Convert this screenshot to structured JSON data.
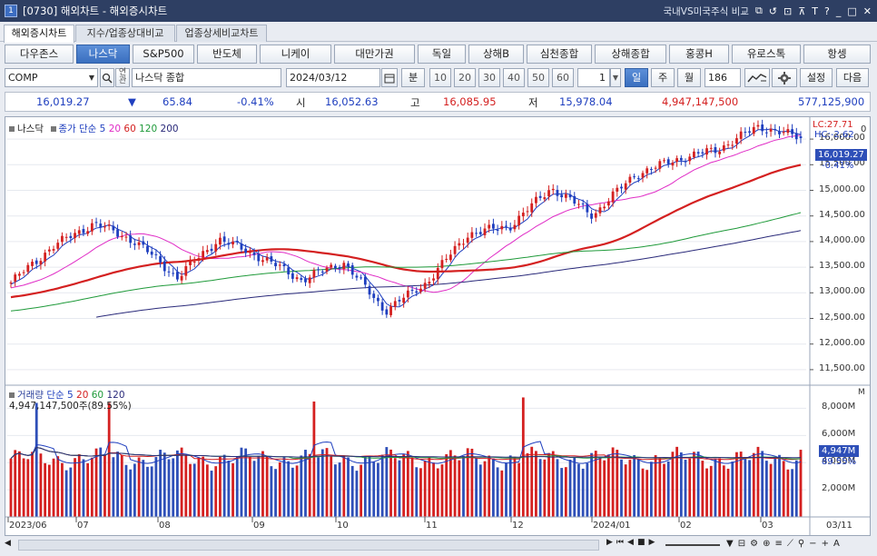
{
  "window": {
    "title": "[0730] 해외차트 - 해외증시차트",
    "app_number": "1",
    "right_label": "국내VS미국주식 비교",
    "icons": [
      "link-icon",
      "restore-icon",
      "copy-icon",
      "pin-icon",
      "text-icon",
      "help-icon",
      "minimize-icon",
      "maximize-icon",
      "close-icon"
    ]
  },
  "tabs": [
    "해외증시차트",
    "지수/업종상대비교",
    "업종상세비교차트"
  ],
  "markets": [
    "다우존스",
    "나스닥",
    "S&P500",
    "반도체",
    "니케이",
    "대만가권",
    "독일",
    "상해B",
    "심천종합",
    "상해종합",
    "홍콩H",
    "유로스톡",
    "항셍"
  ],
  "selected_market": "나스닥",
  "controls": {
    "code": "COMP",
    "name": "나스닥 종합",
    "date": "2024/03/12",
    "period_label": "분",
    "minute_intervals": [
      "10",
      "20",
      "30",
      "40",
      "50",
      "60"
    ],
    "period_value": "1",
    "day": "일",
    "week": "주",
    "month": "월",
    "count": "186",
    "settings": "설정",
    "next": "다음"
  },
  "quote": {
    "price": "16,019.27",
    "arrow": "▼",
    "change": "65.84",
    "change_pct": "-0.41%",
    "open_label": "시",
    "open": "16,052.63",
    "high_label": "고",
    "high": "16,085.95",
    "low_label": "저",
    "low": "15,978.04",
    "volume": "4,947,147,500",
    "amount": "577,125,900"
  },
  "price_legend": {
    "name": "나스닥",
    "ma_label": "종가 단순",
    "ma_periods": [
      "5",
      "20",
      "60",
      "120",
      "200"
    ],
    "ma_colors": [
      "#1f3fbf",
      "#e02cc6",
      "#d42020",
      "#1f9a3a",
      "#2a2a7a"
    ]
  },
  "price_axis": {
    "ticks": [
      "16,000.00",
      "15,500.00",
      "15,000.00",
      "14,500.00",
      "14,000.00",
      "13,500.00",
      "13,000.00",
      "12,500.00",
      "12,000.00",
      "11,500.00"
    ],
    "lc": "LC:27.71",
    "hc": "HC:-2.62",
    "last_price": "16,019.27",
    "last_change": "-0.41%",
    "top_tick_fragment": "0"
  },
  "volume_legend": {
    "name": "거래량",
    "ma_label": "단순",
    "ma_periods": [
      "5",
      "20",
      "60",
      "120"
    ],
    "ma_colors": [
      "#1f3fbf",
      "#d42020",
      "#1f9a3a",
      "#2a2a7a"
    ],
    "info": "4,947,147,500주(89.55%)"
  },
  "volume_axis": {
    "unit": "M",
    "ticks": [
      "8,000M",
      "6,000M",
      "4,000M",
      "2,000M"
    ],
    "last_volume": "4,947M",
    "last_pct": "89.55%"
  },
  "x_axis": {
    "labels": [
      "2023/06",
      "07",
      "08",
      "09",
      "10",
      "11",
      "12",
      "2024/01",
      "02",
      "03"
    ],
    "right_label": "03/11"
  },
  "chart_data": {
    "type": "candlestick",
    "series_name": "나스닥 종합",
    "x_range": [
      "2023/06",
      "2024/03/12"
    ],
    "ylim": [
      11250,
      16250
    ],
    "y_ticks": [
      16000,
      15500,
      15000,
      14500,
      14000,
      13500,
      13000,
      12500,
      12000,
      11500
    ],
    "close_path": [
      {
        "date": "2023/06",
        "close": 13200
      },
      {
        "date": "2023/07",
        "close": 13900
      },
      {
        "date": "2023/07/19",
        "close": 14360
      },
      {
        "date": "2023/08",
        "close": 14000
      },
      {
        "date": "2023/08/18",
        "close": 13300
      },
      {
        "date": "2023/09",
        "close": 14050
      },
      {
        "date": "2023/09/15",
        "close": 13700
      },
      {
        "date": "2023/10",
        "close": 13250
      },
      {
        "date": "2023/10/10",
        "close": 13600
      },
      {
        "date": "2023/10/26",
        "close": 12650
      },
      {
        "date": "2023/11",
        "close": 13200
      },
      {
        "date": "2023/11/15",
        "close": 14150
      },
      {
        "date": "2023/12",
        "close": 14300
      },
      {
        "date": "2023/12/20",
        "close": 15050
      },
      {
        "date": "2024/01/05",
        "close": 14520
      },
      {
        "date": "2024/01/20",
        "close": 15300
      },
      {
        "date": "2024/02",
        "close": 15600
      },
      {
        "date": "2024/02/20",
        "close": 15800
      },
      {
        "date": "2024/03",
        "close": 16250
      },
      {
        "date": "2024/03/12",
        "close": 16019.27
      }
    ],
    "last": {
      "close": 16019.27,
      "open": 16052.63,
      "high": 16085.95,
      "low": 15978.04,
      "volume": 4947147500
    },
    "volume_ylim": [
      0,
      9500
    ],
    "volume_unit": "M",
    "volume_peaks": [
      {
        "date": "2023/06",
        "volume": 8400
      },
      {
        "date": "2023/09",
        "volume": 8500
      },
      {
        "date": "2023/12",
        "volume": 8800
      }
    ]
  },
  "bottom_bar": {
    "icons": [
      "scroll-left-icon",
      "first-icon",
      "prev-icon",
      "stop-icon",
      "next-icon",
      "last-icon",
      "zoom-out-icon",
      "minus-icon",
      "plus-icon",
      "font-icon"
    ],
    "font_label": "A"
  }
}
